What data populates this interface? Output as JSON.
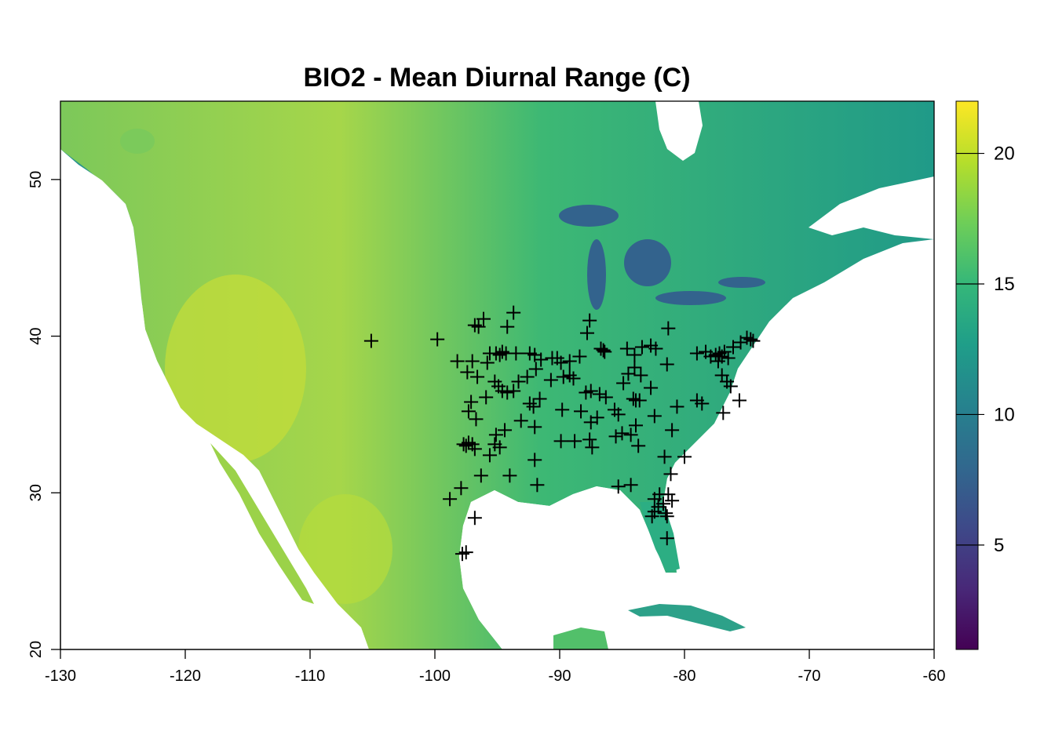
{
  "title": "BIO2 - Mean Diurnal Range (C)",
  "colors": {
    "ocean": "#ffffff",
    "viridis": [
      "#440154",
      "#482878",
      "#3e4989",
      "#31688e",
      "#26828e",
      "#1f9e89",
      "#35b779",
      "#6ece58",
      "#b5de2b",
      "#fde725"
    ]
  },
  "chart_data": {
    "type": "raster-map",
    "variable": "Mean Diurnal Range (C)",
    "xlim": [
      -130,
      -60
    ],
    "ylim": [
      20,
      55
    ],
    "x_ticks": [
      -130,
      -120,
      -110,
      -100,
      -90,
      -80,
      -70,
      -60
    ],
    "x_tick_labels": [
      "-130",
      "-120",
      "-110",
      "-100",
      "-90",
      "-80",
      "-70",
      "-60"
    ],
    "y_ticks": [
      20,
      30,
      40,
      50
    ],
    "y_tick_labels": [
      "20",
      "30",
      "40",
      "50"
    ],
    "colorbar": {
      "range": [
        1,
        22
      ],
      "ticks": [
        5,
        10,
        15,
        20
      ],
      "tick_labels": [
        "5",
        "10",
        "15",
        "20"
      ],
      "palette": "viridis"
    },
    "points_marker": "+",
    "points": [
      [
        -105.1,
        39.7
      ],
      [
        -99.8,
        39.8
      ],
      [
        -96.8,
        40.7
      ],
      [
        -96.1,
        41.1
      ],
      [
        -96.5,
        40.6
      ],
      [
        -93.7,
        41.5
      ],
      [
        -94.2,
        40.6
      ],
      [
        -87.6,
        41.0
      ],
      [
        -87.8,
        40.2
      ],
      [
        -81.3,
        40.5
      ],
      [
        -98.2,
        38.4
      ],
      [
        -97.0,
        38.4
      ],
      [
        -95.8,
        38.3
      ],
      [
        -95.6,
        38.9
      ],
      [
        -95.1,
        38.9
      ],
      [
        -94.8,
        38.8
      ],
      [
        -94.6,
        39.0
      ],
      [
        -94.3,
        38.9
      ],
      [
        -93.5,
        38.9
      ],
      [
        -92.4,
        38.9
      ],
      [
        -92.0,
        38.8
      ],
      [
        -91.9,
        37.9
      ],
      [
        -91.5,
        38.5
      ],
      [
        -90.6,
        38.6
      ],
      [
        -90.2,
        38.6
      ],
      [
        -89.9,
        38.3
      ],
      [
        -89.2,
        38.4
      ],
      [
        -88.4,
        38.7
      ],
      [
        -86.7,
        39.2
      ],
      [
        -86.4,
        39.0
      ],
      [
        -86.5,
        39.1
      ],
      [
        -84.6,
        39.2
      ],
      [
        -84.0,
        38.8
      ],
      [
        -83.4,
        39.3
      ],
      [
        -82.7,
        39.4
      ],
      [
        -82.3,
        39.2
      ],
      [
        -81.4,
        38.2
      ],
      [
        -79.0,
        38.9
      ],
      [
        -78.3,
        39.0
      ],
      [
        -77.9,
        38.7
      ],
      [
        -77.5,
        38.8
      ],
      [
        -77.2,
        38.9
      ],
      [
        -77.0,
        38.7
      ],
      [
        -76.8,
        39.0
      ],
      [
        -76.5,
        38.6
      ],
      [
        -76.1,
        39.3
      ],
      [
        -75.5,
        39.6
      ],
      [
        -75.0,
        39.9
      ],
      [
        -74.7,
        39.8
      ],
      [
        -74.5,
        39.7
      ],
      [
        -97.4,
        37.7
      ],
      [
        -96.6,
        37.4
      ],
      [
        -95.9,
        36.1
      ],
      [
        -95.2,
        37.1
      ],
      [
        -94.9,
        36.8
      ],
      [
        -94.6,
        36.5
      ],
      [
        -94.2,
        36.4
      ],
      [
        -93.7,
        36.5
      ],
      [
        -93.3,
        37.1
      ],
      [
        -92.6,
        37.4
      ],
      [
        -92.4,
        35.7
      ],
      [
        -92.1,
        35.5
      ],
      [
        -91.6,
        36.0
      ],
      [
        -90.7,
        37.2
      ],
      [
        -89.7,
        37.4
      ],
      [
        -89.2,
        37.5
      ],
      [
        -88.9,
        37.3
      ],
      [
        -87.9,
        36.4
      ],
      [
        -87.5,
        36.5
      ],
      [
        -86.8,
        36.3
      ],
      [
        -86.3,
        36.1
      ],
      [
        -85.6,
        35.3
      ],
      [
        -85.3,
        35.0
      ],
      [
        -84.9,
        37.0
      ],
      [
        -84.5,
        37.6
      ],
      [
        -84.0,
        38.0
      ],
      [
        -83.5,
        37.5
      ],
      [
        -84.1,
        36.0
      ],
      [
        -83.9,
        35.9
      ],
      [
        -83.6,
        35.9
      ],
      [
        -82.7,
        36.7
      ],
      [
        -80.6,
        35.5
      ],
      [
        -79.0,
        35.9
      ],
      [
        -78.6,
        35.7
      ],
      [
        -77.3,
        38.4
      ],
      [
        -77.0,
        37.5
      ],
      [
        -76.6,
        37.1
      ],
      [
        -76.3,
        36.8
      ],
      [
        -75.6,
        35.9
      ],
      [
        -76.9,
        35.1
      ],
      [
        -97.3,
        35.2
      ],
      [
        -97.1,
        35.8
      ],
      [
        -96.7,
        34.7
      ],
      [
        -95.1,
        33.7
      ],
      [
        -94.4,
        34.0
      ],
      [
        -93.1,
        34.6
      ],
      [
        -92.0,
        34.2
      ],
      [
        -88.3,
        35.2
      ],
      [
        -87.5,
        34.5
      ],
      [
        -87.0,
        34.8
      ],
      [
        -85.5,
        33.6
      ],
      [
        -85.0,
        33.8
      ],
      [
        -84.3,
        33.7
      ],
      [
        -83.9,
        34.3
      ],
      [
        -82.4,
        34.9
      ],
      [
        -81.0,
        34.0
      ],
      [
        -80.0,
        32.3
      ],
      [
        -97.7,
        33.1
      ],
      [
        -97.3,
        33.2
      ],
      [
        -97.0,
        33.1
      ],
      [
        -97.5,
        33.0
      ],
      [
        -96.8,
        32.8
      ],
      [
        -95.6,
        32.4
      ],
      [
        -95.2,
        33.1
      ],
      [
        -94.8,
        32.9
      ],
      [
        -92.0,
        32.1
      ],
      [
        -89.9,
        33.3
      ],
      [
        -88.8,
        33.3
      ],
      [
        -87.4,
        32.9
      ],
      [
        -87.6,
        33.4
      ],
      [
        -83.7,
        33.0
      ],
      [
        -81.6,
        32.3
      ],
      [
        -81.1,
        31.2
      ],
      [
        -96.3,
        31.1
      ],
      [
        -94.0,
        31.1
      ],
      [
        -97.9,
        30.3
      ],
      [
        -98.8,
        29.6
      ],
      [
        -91.8,
        30.5
      ],
      [
        -85.3,
        30.4
      ],
      [
        -84.3,
        30.5
      ],
      [
        -82.4,
        29.6
      ],
      [
        -82.0,
        29.9
      ],
      [
        -81.3,
        29.9
      ],
      [
        -81.7,
        29.3
      ],
      [
        -82.6,
        28.5
      ],
      [
        -82.1,
        29.1
      ],
      [
        -81.5,
        28.7
      ],
      [
        -81.0,
        29.5
      ],
      [
        -81.4,
        28.5
      ],
      [
        -82.4,
        28.8
      ],
      [
        -96.8,
        28.4
      ],
      [
        -97.5,
        26.2
      ],
      [
        -97.8,
        26.1
      ],
      [
        -81.4,
        27.1
      ],
      [
        -89.8,
        35.3
      ]
    ]
  }
}
